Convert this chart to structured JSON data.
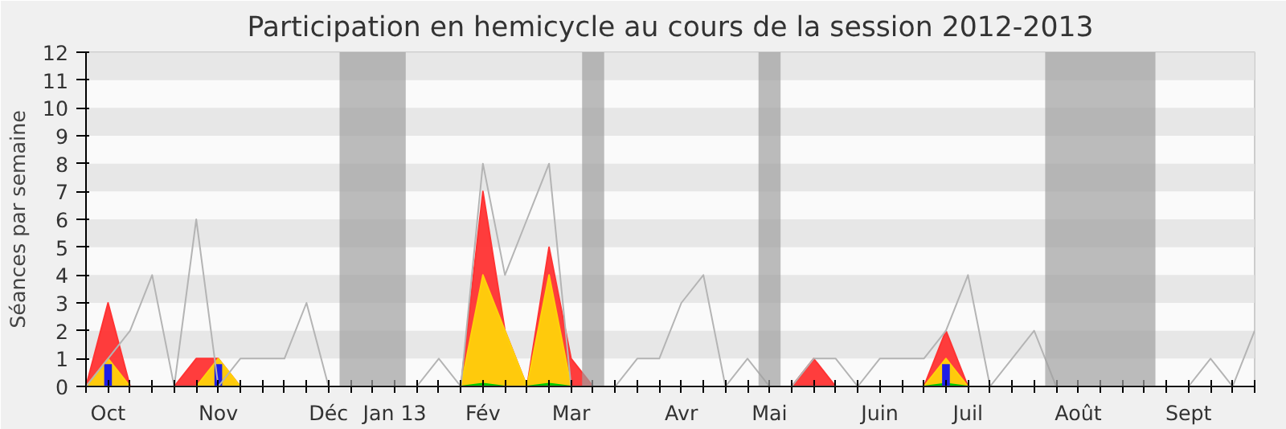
{
  "chart_data": {
    "type": "line",
    "title": "Participation en hemicycle au cours de la session 2012-2013",
    "ylabel": "Séances par semaine",
    "categories": [
      null,
      "Oct",
      null,
      null,
      null,
      null,
      "Nov",
      null,
      null,
      null,
      null,
      "Déc",
      null,
      null,
      "Jan 13",
      null,
      null,
      null,
      "Fév",
      null,
      null,
      null,
      "Mar",
      null,
      null,
      null,
      null,
      "Avr",
      null,
      null,
      null,
      "Mai",
      null,
      null,
      null,
      null,
      "Juin",
      null,
      null,
      null,
      "Juil",
      null,
      null,
      null,
      null,
      "Août",
      null,
      null,
      null,
      null,
      "Sept",
      null,
      null,
      null
    ],
    "series": [
      {
        "color": "#b4b4b4",
        "values": [
          0,
          1,
          2,
          4,
          0,
          6,
          0,
          1,
          1,
          1,
          3,
          0,
          0,
          0,
          0,
          0,
          1,
          0,
          8,
          4,
          6,
          8,
          0,
          0,
          0,
          1,
          1,
          3,
          4,
          0,
          1,
          0,
          0,
          1,
          1,
          0,
          1,
          1,
          1,
          2,
          4,
          0,
          1,
          2,
          0,
          0,
          0,
          0,
          0,
          0,
          0,
          1,
          0,
          2
        ]
      },
      {
        "type": "area",
        "color": "#ff3333",
        "values": [
          0,
          3,
          0,
          0,
          0,
          1,
          1,
          0,
          0,
          0,
          0,
          0,
          0,
          0,
          0,
          0,
          0,
          0,
          7,
          2,
          0,
          5,
          1,
          0,
          0,
          0,
          0,
          0,
          0,
          0,
          0,
          0,
          0,
          1,
          0,
          0,
          0,
          0,
          0,
          2,
          0,
          0,
          0,
          0,
          0,
          0,
          0,
          0,
          0,
          0,
          0,
          0,
          0,
          0
        ]
      },
      {
        "type": "area",
        "color": "#ffd20a",
        "values": [
          0,
          1,
          0,
          0,
          0,
          0,
          1,
          0,
          0,
          0,
          0,
          0,
          0,
          0,
          0,
          0,
          0,
          0,
          4,
          2,
          0,
          4,
          0,
          0,
          0,
          0,
          0,
          0,
          0,
          0,
          0,
          0,
          0,
          0,
          0,
          0,
          0,
          0,
          0,
          1,
          0,
          0,
          0,
          0,
          0,
          0,
          0,
          0,
          0,
          0,
          0,
          0,
          0,
          0
        ]
      },
      {
        "type": "area",
        "color": "#00c800",
        "values": [
          0,
          0,
          0,
          0,
          0,
          0,
          0,
          0,
          0,
          0,
          0,
          0,
          0,
          0,
          0,
          0,
          0,
          0,
          0.1,
          0,
          0,
          0.1,
          0,
          0,
          0,
          0,
          0,
          0,
          0,
          0,
          0,
          0,
          0,
          0,
          0,
          0,
          0,
          0,
          0,
          0.1,
          0,
          0,
          0,
          0,
          0,
          0,
          0,
          0,
          0,
          0,
          0,
          0,
          0,
          0
        ]
      },
      {
        "type": "bar",
        "color": "#1e1ee6",
        "values": [
          null,
          0.8,
          null,
          null,
          null,
          null,
          0.8,
          null,
          null,
          null,
          null,
          null,
          null,
          null,
          null,
          null,
          null,
          null,
          null,
          null,
          null,
          null,
          null,
          null,
          null,
          null,
          null,
          null,
          null,
          null,
          null,
          null,
          null,
          null,
          null,
          null,
          null,
          null,
          null,
          0.8,
          null,
          null,
          null,
          null,
          null,
          null,
          null,
          null,
          null,
          null,
          null,
          null,
          null,
          null
        ]
      }
    ],
    "ylim": [
      0,
      12
    ],
    "yticks": [
      0,
      1,
      2,
      3,
      4,
      5,
      6,
      7,
      8,
      9,
      10,
      11,
      12
    ]
  }
}
